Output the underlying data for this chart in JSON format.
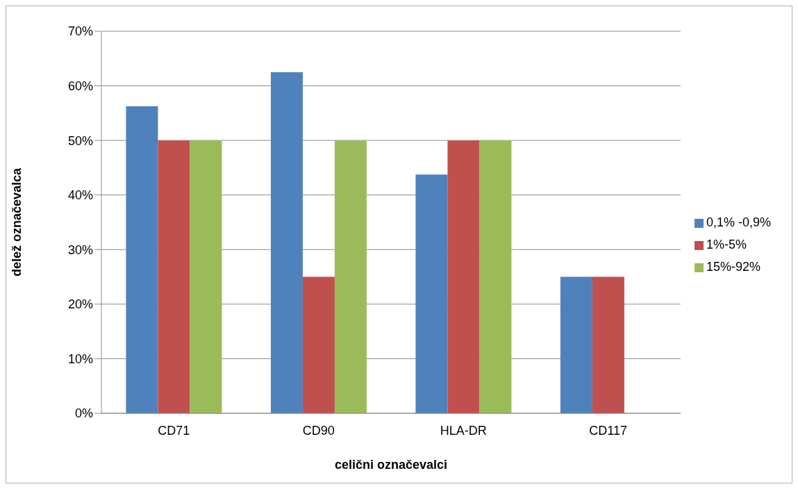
{
  "chart_data": {
    "type": "bar",
    "xlabel": "celični označevalci",
    "ylabel": "delež  označevalca",
    "categories": [
      "CD71",
      "CD90",
      "HLA-DR",
      "CD117"
    ],
    "series": [
      {
        "name": "0,1% -0,9%",
        "color": "#4f81bd",
        "values": [
          56.25,
          62.5,
          43.75,
          25
        ]
      },
      {
        "name": "1%-5%",
        "color": "#c0504d",
        "values": [
          50,
          25,
          50,
          25
        ]
      },
      {
        "name": "15%-92%",
        "color": "#9bbb59",
        "values": [
          50,
          50,
          50,
          0
        ]
      }
    ],
    "ylim": [
      0,
      70
    ],
    "yticks": [
      {
        "value": 0,
        "label": "0%"
      },
      {
        "value": 10,
        "label": "10%"
      },
      {
        "value": 20,
        "label": "20%"
      },
      {
        "value": 30,
        "label": "30%"
      },
      {
        "value": 40,
        "label": "40%"
      },
      {
        "value": 50,
        "label": "50%"
      },
      {
        "value": 60,
        "label": "60%"
      },
      {
        "value": 70,
        "label": "70%"
      }
    ],
    "grid": "y",
    "legend": "right"
  }
}
